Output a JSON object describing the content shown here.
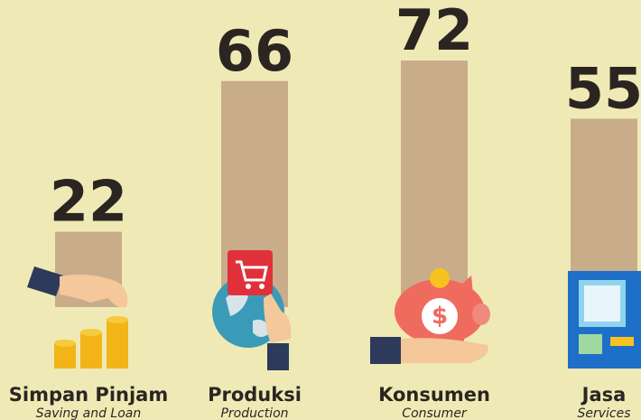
{
  "chart_data": {
    "type": "bar",
    "categories": [
      "Simpan Pinjam",
      "Produksi",
      "Konsumen",
      "Jasa"
    ],
    "category_subtitles": [
      "Saving and Loan",
      "Production",
      "Consumer",
      "Services"
    ],
    "values": [
      22,
      66,
      72,
      55
    ],
    "color": "#c9ac8a"
  }
}
